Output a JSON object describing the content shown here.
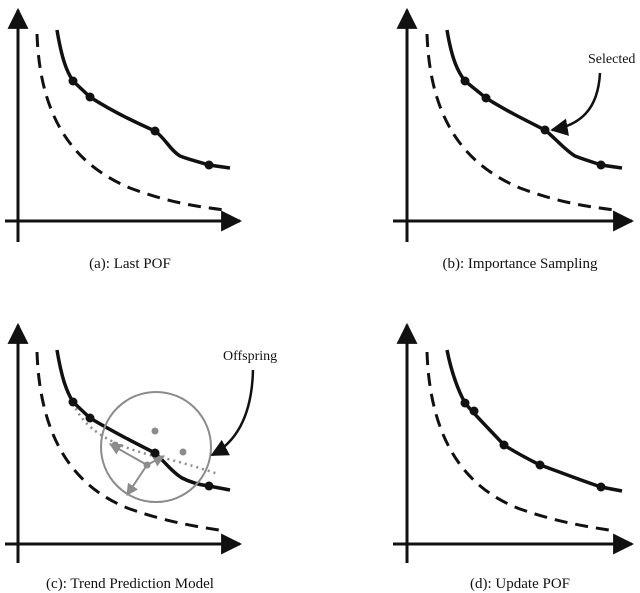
{
  "panels": [
    {
      "id": "a",
      "caption": "(a): Last POF"
    },
    {
      "id": "b",
      "caption": "(b): Importance Sampling",
      "callout": "Selected"
    },
    {
      "id": "c",
      "caption": "(c): Trend Prediction Model",
      "callout": "Offspring"
    },
    {
      "id": "d",
      "caption": "(d): Update POF"
    }
  ],
  "colors": {
    "ink": "#111111",
    "model": "#8c8c8c"
  }
}
